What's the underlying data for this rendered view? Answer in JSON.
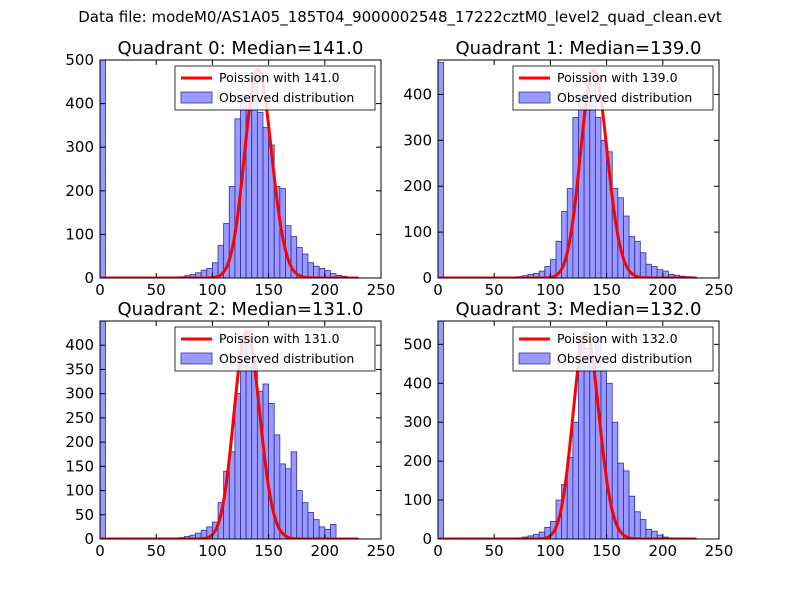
{
  "figure": {
    "suptitle": "Data file: modeM0/AS1A05_185T04_9000002548_17222cztM0_level2_quad_clean.evt",
    "colors": {
      "bars": "#8080ff",
      "bar_edge": "#3030a0",
      "poisson": "#ff0000",
      "axes": "#000000"
    }
  },
  "chart_data": [
    {
      "type": "bar",
      "title": "Quadrant 0: Median=141.0",
      "xlim": [
        0,
        250
      ],
      "ylim": [
        0,
        500
      ],
      "xticks": [
        0,
        50,
        100,
        150,
        200,
        250
      ],
      "yticks": [
        0,
        100,
        200,
        300,
        400,
        500
      ],
      "legend": [
        "Poission with 141.0",
        "Observed distribution"
      ],
      "legend_loc": "top-right",
      "median": 141.0,
      "poisson_scale": 478,
      "bin_width": 5,
      "bin_starts": [
        0,
        65,
        70,
        75,
        80,
        85,
        90,
        95,
        100,
        105,
        110,
        115,
        120,
        125,
        130,
        135,
        140,
        145,
        150,
        155,
        160,
        165,
        170,
        175,
        180,
        185,
        190,
        195,
        200,
        205,
        210,
        215,
        220
      ],
      "counts": [
        500,
        2,
        3,
        5,
        8,
        12,
        18,
        22,
        35,
        75,
        125,
        210,
        365,
        420,
        390,
        460,
        380,
        345,
        305,
        210,
        205,
        120,
        95,
        70,
        55,
        35,
        27,
        22,
        17,
        10,
        6,
        4,
        2
      ]
    },
    {
      "type": "bar",
      "title": "Quadrant 1: Median=139.0",
      "xlim": [
        0,
        250
      ],
      "ylim": [
        0,
        475
      ],
      "xticks": [
        0,
        50,
        100,
        150,
        200,
        250
      ],
      "yticks": [
        0,
        100,
        200,
        300,
        400
      ],
      "legend": [
        "Poission with 139.0",
        "Observed distribution"
      ],
      "legend_loc": "top-right",
      "median": 139.0,
      "poisson_scale": 453,
      "bin_width": 5,
      "bin_starts": [
        0,
        70,
        75,
        80,
        85,
        90,
        95,
        100,
        105,
        110,
        115,
        120,
        125,
        130,
        135,
        140,
        145,
        150,
        155,
        160,
        165,
        170,
        175,
        180,
        185,
        190,
        195,
        200,
        205,
        210,
        215,
        220,
        225
      ],
      "counts": [
        470,
        3,
        5,
        8,
        10,
        15,
        25,
        40,
        80,
        145,
        195,
        350,
        400,
        385,
        425,
        350,
        300,
        275,
        195,
        175,
        135,
        90,
        80,
        55,
        30,
        25,
        18,
        15,
        8,
        6,
        4,
        3,
        2
      ]
    },
    {
      "type": "bar",
      "title": "Quadrant 2: Median=131.0",
      "xlim": [
        0,
        250
      ],
      "ylim": [
        0,
        450
      ],
      "xticks": [
        0,
        50,
        100,
        150,
        200,
        250
      ],
      "yticks": [
        0,
        50,
        100,
        150,
        200,
        250,
        300,
        350,
        400
      ],
      "legend": [
        "Poission with 131.0",
        "Observed distribution"
      ],
      "legend_loc": "top-right",
      "median": 131.0,
      "poisson_scale": 428,
      "bin_width": 5,
      "bin_starts": [
        0,
        70,
        75,
        80,
        85,
        90,
        95,
        100,
        105,
        110,
        115,
        120,
        125,
        130,
        135,
        140,
        145,
        150,
        155,
        160,
        165,
        170,
        175,
        180,
        185,
        190,
        195,
        200,
        205
      ],
      "counts": [
        450,
        3,
        5,
        8,
        12,
        18,
        25,
        35,
        75,
        140,
        180,
        300,
        415,
        430,
        375,
        305,
        320,
        280,
        215,
        155,
        145,
        180,
        100,
        75,
        55,
        40,
        25,
        20,
        30
      ]
    },
    {
      "type": "bar",
      "title": "Quadrant 3: Median=132.0",
      "xlim": [
        0,
        250
      ],
      "ylim": [
        0,
        560
      ],
      "xticks": [
        0,
        50,
        100,
        150,
        200,
        250
      ],
      "yticks": [
        0,
        100,
        200,
        300,
        400,
        500
      ],
      "legend": [
        "Poission with 132.0",
        "Observed distribution"
      ],
      "legend_loc": "top-right",
      "median": 132.0,
      "poisson_scale": 530,
      "bin_width": 5,
      "bin_starts": [
        0,
        70,
        75,
        80,
        85,
        90,
        95,
        100,
        105,
        110,
        115,
        120,
        125,
        130,
        135,
        140,
        145,
        150,
        155,
        160,
        165,
        170,
        175,
        180,
        185,
        190,
        195,
        200,
        205
      ],
      "counts": [
        560,
        3,
        5,
        8,
        12,
        18,
        30,
        45,
        100,
        140,
        210,
        300,
        520,
        490,
        450,
        515,
        435,
        400,
        300,
        195,
        175,
        110,
        70,
        50,
        25,
        20,
        10,
        5,
        3
      ]
    }
  ]
}
